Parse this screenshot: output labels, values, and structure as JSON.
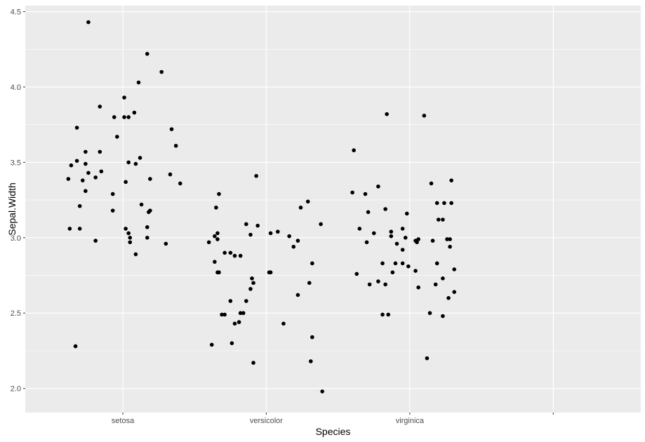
{
  "chart_data": {
    "type": "scatter",
    "title": "",
    "xlabel": "Species",
    "ylabel": "Sepal.Width",
    "categories": [
      "setosa",
      "versicolor",
      "virginica",
      ""
    ],
    "xlim": [
      0.32,
      4.61
    ],
    "ylim": [
      1.84,
      4.54
    ],
    "yticks": [
      2.0,
      2.5,
      3.0,
      3.5,
      4.0,
      4.5
    ],
    "ytick_labels": [
      "2.0",
      "2.5",
      "3.0",
      "3.5",
      "4.0",
      "4.5"
    ],
    "grid": true,
    "legend": "none",
    "colors": {
      "panel": "#EBEBEB",
      "grid": "#FFFFFF",
      "point": "#000000",
      "tick_text": "#4D4D4D"
    },
    "series": [
      {
        "category": "setosa",
        "points": [
          [
            0.76,
            4.43
          ],
          [
            1.17,
            4.22
          ],
          [
            1.27,
            4.1
          ],
          [
            1.11,
            4.03
          ],
          [
            1.01,
            3.93
          ],
          [
            0.84,
            3.87
          ],
          [
            1.08,
            3.83
          ],
          [
            1.01,
            3.8
          ],
          [
            1.04,
            3.8
          ],
          [
            0.94,
            3.8
          ],
          [
            0.96,
            3.67
          ],
          [
            0.68,
            3.73
          ],
          [
            1.34,
            3.72
          ],
          [
            1.37,
            3.61
          ],
          [
            0.74,
            3.57
          ],
          [
            0.84,
            3.57
          ],
          [
            0.68,
            3.51
          ],
          [
            0.64,
            3.48
          ],
          [
            1.04,
            3.5
          ],
          [
            1.12,
            3.53
          ],
          [
            1.02,
            3.37
          ],
          [
            0.74,
            3.49
          ],
          [
            0.76,
            3.43
          ],
          [
            0.85,
            3.44
          ],
          [
            0.81,
            3.4
          ],
          [
            1.09,
            3.49
          ],
          [
            1.19,
            3.39
          ],
          [
            0.72,
            3.38
          ],
          [
            0.62,
            3.39
          ],
          [
            0.74,
            3.31
          ],
          [
            0.93,
            3.29
          ],
          [
            0.93,
            3.18
          ],
          [
            0.7,
            3.21
          ],
          [
            1.13,
            3.22
          ],
          [
            1.19,
            3.18
          ],
          [
            1.18,
            3.17
          ],
          [
            1.4,
            3.36
          ],
          [
            1.33,
            3.42
          ],
          [
            0.81,
            2.98
          ],
          [
            1.3,
            2.96
          ],
          [
            0.63,
            3.06
          ],
          [
            0.7,
            3.06
          ],
          [
            1.02,
            3.06
          ],
          [
            1.17,
            3.07
          ],
          [
            1.04,
            3.03
          ],
          [
            1.05,
            3.0
          ],
          [
            1.05,
            2.97
          ],
          [
            1.09,
            2.89
          ],
          [
            1.17,
            3.0
          ],
          [
            0.67,
            2.28
          ]
        ]
      },
      {
        "category": "versicolor",
        "points": [
          [
            1.93,
            3.41
          ],
          [
            1.67,
            3.29
          ],
          [
            1.65,
            3.2
          ],
          [
            1.86,
            3.09
          ],
          [
            1.94,
            3.08
          ],
          [
            1.66,
            3.03
          ],
          [
            1.64,
            3.01
          ],
          [
            1.66,
            2.99
          ],
          [
            1.6,
            2.97
          ],
          [
            2.08,
            3.04
          ],
          [
            2.03,
            3.03
          ],
          [
            1.89,
            3.02
          ],
          [
            2.29,
            3.24
          ],
          [
            2.24,
            3.2
          ],
          [
            2.38,
            3.09
          ],
          [
            2.16,
            3.01
          ],
          [
            2.22,
            2.98
          ],
          [
            2.19,
            2.94
          ],
          [
            1.71,
            2.9
          ],
          [
            1.75,
            2.9
          ],
          [
            1.78,
            2.88
          ],
          [
            1.82,
            2.88
          ],
          [
            1.64,
            2.84
          ],
          [
            1.66,
            2.77
          ],
          [
            1.67,
            2.77
          ],
          [
            2.02,
            2.77
          ],
          [
            2.03,
            2.77
          ],
          [
            1.9,
            2.73
          ],
          [
            1.91,
            2.7
          ],
          [
            1.89,
            2.66
          ],
          [
            2.32,
            2.83
          ],
          [
            2.3,
            2.7
          ],
          [
            2.22,
            2.62
          ],
          [
            1.75,
            2.58
          ],
          [
            1.86,
            2.58
          ],
          [
            1.69,
            2.49
          ],
          [
            1.71,
            2.49
          ],
          [
            1.82,
            2.5
          ],
          [
            1.84,
            2.5
          ],
          [
            2.12,
            2.43
          ],
          [
            1.78,
            2.43
          ],
          [
            1.81,
            2.44
          ],
          [
            1.62,
            2.29
          ],
          [
            1.76,
            2.3
          ],
          [
            2.32,
            2.34
          ],
          [
            1.91,
            2.17
          ],
          [
            2.31,
            2.18
          ],
          [
            2.39,
            1.98
          ]
        ]
      },
      {
        "category": "virginica",
        "points": [
          [
            2.61,
            3.58
          ],
          [
            2.84,
            3.82
          ],
          [
            3.1,
            3.81
          ],
          [
            2.6,
            3.3
          ],
          [
            2.69,
            3.29
          ],
          [
            2.78,
            3.34
          ],
          [
            3.15,
            3.36
          ],
          [
            3.29,
            3.38
          ],
          [
            2.71,
            3.17
          ],
          [
            2.83,
            3.19
          ],
          [
            2.65,
            3.06
          ],
          [
            2.98,
            3.16
          ],
          [
            3.19,
            3.23
          ],
          [
            3.24,
            3.23
          ],
          [
            3.29,
            3.23
          ],
          [
            2.95,
            3.06
          ],
          [
            3.2,
            3.12
          ],
          [
            3.23,
            3.12
          ],
          [
            2.75,
            3.03
          ],
          [
            2.87,
            3.04
          ],
          [
            2.87,
            3.01
          ],
          [
            3.06,
            2.99
          ],
          [
            2.7,
            2.97
          ],
          [
            2.91,
            2.96
          ],
          [
            2.97,
            3.0
          ],
          [
            3.04,
            2.98
          ],
          [
            3.05,
            2.97
          ],
          [
            3.26,
            2.99
          ],
          [
            3.28,
            2.99
          ],
          [
            3.16,
            2.98
          ],
          [
            3.28,
            2.94
          ],
          [
            2.95,
            2.92
          ],
          [
            2.95,
            2.83
          ],
          [
            2.9,
            2.83
          ],
          [
            2.99,
            2.81
          ],
          [
            3.19,
            2.83
          ],
          [
            3.04,
            2.78
          ],
          [
            2.81,
            2.83
          ],
          [
            2.88,
            2.77
          ],
          [
            2.63,
            2.76
          ],
          [
            2.83,
            2.69
          ],
          [
            2.72,
            2.69
          ],
          [
            3.06,
            2.67
          ],
          [
            3.23,
            2.73
          ],
          [
            3.31,
            2.64
          ],
          [
            2.78,
            2.71
          ],
          [
            3.18,
            2.69
          ],
          [
            3.27,
            2.6
          ],
          [
            3.31,
            2.79
          ],
          [
            3.14,
            2.5
          ],
          [
            2.81,
            2.49
          ],
          [
            2.85,
            2.49
          ],
          [
            3.23,
            2.48
          ],
          [
            3.12,
            2.2
          ]
        ]
      }
    ]
  }
}
